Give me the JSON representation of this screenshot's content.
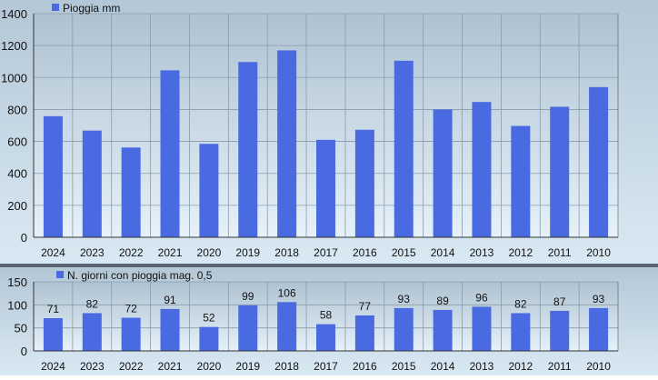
{
  "chart_data": [
    {
      "type": "bar",
      "categories": [
        "2024",
        "2023",
        "2022",
        "2021",
        "2020",
        "2019",
        "2018",
        "2017",
        "2016",
        "2015",
        "2014",
        "2013",
        "2012",
        "2011",
        "2010"
      ],
      "series": [
        {
          "name": "Pioggia mm",
          "values": [
            758,
            668,
            562,
            1045,
            585,
            1097,
            1170,
            610,
            673,
            1105,
            800,
            847,
            697,
            817,
            940
          ]
        }
      ],
      "yticks": [
        0,
        200,
        400,
        600,
        800,
        1000,
        1200,
        1400
      ],
      "ylim": [
        0,
        1400
      ],
      "grid": true,
      "legend": "top-left",
      "bar_color": "#4a6ae2"
    },
    {
      "type": "bar",
      "categories": [
        "2024",
        "2023",
        "2022",
        "2021",
        "2020",
        "2019",
        "2018",
        "2017",
        "2016",
        "2015",
        "2014",
        "2013",
        "2012",
        "2011",
        "2010"
      ],
      "series": [
        {
          "name": "N. giorni con pioggia mag. 0,5",
          "values": [
            71,
            82,
            72,
            91,
            52,
            99,
            106,
            58,
            77,
            93,
            89,
            96,
            82,
            87,
            93
          ]
        }
      ],
      "data_labels": [
        "71",
        "82",
        "72",
        "91",
        "52",
        "99",
        "106",
        "58",
        "77",
        "93",
        "89",
        "96",
        "82",
        "87",
        "93"
      ],
      "yticks": [
        0,
        50,
        100,
        150
      ],
      "ylim": [
        0,
        150
      ],
      "grid": true,
      "legend": "top-left",
      "bar_color": "#4a6ae2"
    }
  ]
}
